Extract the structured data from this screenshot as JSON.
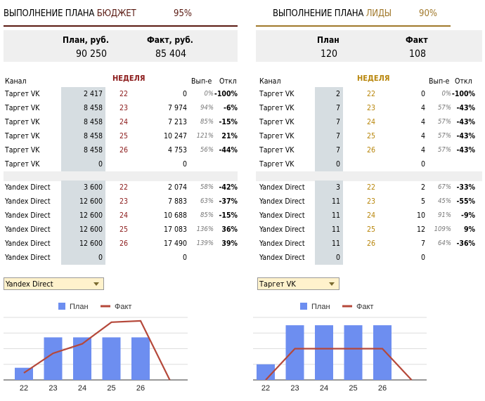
{
  "budget": {
    "title_prefix": "ВЫПОЛНЕНИЕ ПЛАНА ",
    "title_accent": "БЮДЖЕТ",
    "percent": "95%",
    "plan_label": "План, руб.",
    "plan_value": "90 250",
    "fact_label": "Факт, руб.",
    "fact_value": "85 404",
    "col_channel": "Канал",
    "col_week": "НЕДЕЛЯ",
    "col_exec": "Вып-е",
    "col_dev": "Откл",
    "rows_a": [
      {
        "channel": "Таргет VK",
        "plan": "2 417",
        "week": "22",
        "fact": "0",
        "exec": "0%",
        "dev": "-100%"
      },
      {
        "channel": "Таргет VK",
        "plan": "8 458",
        "week": "23",
        "fact": "7 974",
        "exec": "94%",
        "dev": "-6%"
      },
      {
        "channel": "Таргет VK",
        "plan": "8 458",
        "week": "24",
        "fact": "7 213",
        "exec": "85%",
        "dev": "-15%"
      },
      {
        "channel": "Таргет VK",
        "plan": "8 458",
        "week": "25",
        "fact": "10 247",
        "exec": "121%",
        "dev": "21%"
      },
      {
        "channel": "Таргет VK",
        "plan": "8 458",
        "week": "26",
        "fact": "4 753",
        "exec": "56%",
        "dev": "-44%"
      },
      {
        "channel": "Таргет VK",
        "plan": "0",
        "week": "",
        "fact": "0",
        "exec": "",
        "dev": ""
      }
    ],
    "rows_b": [
      {
        "channel": "Yandex Direct",
        "plan": "3 600",
        "week": "22",
        "fact": "2 074",
        "exec": "58%",
        "dev": "-42%"
      },
      {
        "channel": "Yandex Direct",
        "plan": "12 600",
        "week": "23",
        "fact": "7 883",
        "exec": "63%",
        "dev": "-37%"
      },
      {
        "channel": "Yandex Direct",
        "plan": "12 600",
        "week": "24",
        "fact": "10 688",
        "exec": "85%",
        "dev": "-15%"
      },
      {
        "channel": "Yandex Direct",
        "plan": "12 600",
        "week": "25",
        "fact": "17 083",
        "exec": "136%",
        "dev": "36%"
      },
      {
        "channel": "Yandex Direct",
        "plan": "12 600",
        "week": "26",
        "fact": "17 490",
        "exec": "139%",
        "dev": "39%"
      },
      {
        "channel": "Yandex Direct",
        "plan": "0",
        "week": "",
        "fact": "0",
        "exec": "",
        "dev": ""
      }
    ],
    "selector": "Yandex Direct"
  },
  "leads": {
    "title_prefix": "ВЫПОЛНЕНИЕ ПЛАНА ",
    "title_accent": "ЛИДЫ",
    "percent": "90%",
    "plan_label": "План",
    "plan_value": "120",
    "fact_label": "Факт",
    "fact_value": "108",
    "col_channel": "Канал",
    "col_week": "НЕДЕЛЯ",
    "col_exec": "Вып-е",
    "col_dev": "Откл",
    "rows_a": [
      {
        "channel": "Таргет VK",
        "plan": "2",
        "week": "22",
        "fact": "0",
        "exec": "0%",
        "dev": "-100%"
      },
      {
        "channel": "Таргет VK",
        "plan": "7",
        "week": "23",
        "fact": "4",
        "exec": "57%",
        "dev": "-43%"
      },
      {
        "channel": "Таргет VK",
        "plan": "7",
        "week": "24",
        "fact": "4",
        "exec": "57%",
        "dev": "-43%"
      },
      {
        "channel": "Таргет VK",
        "plan": "7",
        "week": "25",
        "fact": "4",
        "exec": "57%",
        "dev": "-43%"
      },
      {
        "channel": "Таргет VK",
        "plan": "7",
        "week": "26",
        "fact": "4",
        "exec": "57%",
        "dev": "-43%"
      },
      {
        "channel": "Таргет VK",
        "plan": "0",
        "week": "",
        "fact": "0",
        "exec": "",
        "dev": ""
      }
    ],
    "rows_b": [
      {
        "channel": "Yandex Direct",
        "plan": "3",
        "week": "22",
        "fact": "2",
        "exec": "67%",
        "dev": "-33%"
      },
      {
        "channel": "Yandex Direct",
        "plan": "11",
        "week": "23",
        "fact": "5",
        "exec": "45%",
        "dev": "-55%"
      },
      {
        "channel": "Yandex Direct",
        "plan": "11",
        "week": "24",
        "fact": "10",
        "exec": "91%",
        "dev": "-9%"
      },
      {
        "channel": "Yandex Direct",
        "plan": "11",
        "week": "25",
        "fact": "12",
        "exec": "109%",
        "dev": "9%"
      },
      {
        "channel": "Yandex Direct",
        "plan": "11",
        "week": "26",
        "fact": "7",
        "exec": "64%",
        "dev": "-36%"
      },
      {
        "channel": "Yandex Direct",
        "plan": "0",
        "week": "",
        "fact": "0",
        "exec": "",
        "dev": ""
      }
    ],
    "selector": "Таргет VK"
  },
  "colors": {
    "budget_accent": "#5a1a12",
    "leads_accent": "#a0782a",
    "budget_week": "#8b1a1a",
    "leads_week": "#b8860b",
    "bar": "#6d8ef0",
    "line": "#b5483a"
  },
  "chart_data": [
    {
      "type": "bar",
      "legend": [
        "План",
        "Факт"
      ],
      "legend_position": "top",
      "categories": [
        "22",
        "23",
        "24",
        "25",
        "26",
        ""
      ],
      "series": [
        {
          "name": "План",
          "type": "bar",
          "values": [
            3600,
            12600,
            12600,
            12600,
            12600,
            0
          ]
        },
        {
          "name": "Факт",
          "type": "line",
          "values": [
            2074,
            7883,
            10688,
            17083,
            17490,
            0
          ]
        }
      ],
      "ylim": [
        0,
        18500
      ],
      "grid": true
    },
    {
      "type": "bar",
      "legend": [
        "План",
        "Факт"
      ],
      "legend_position": "top",
      "categories": [
        "22",
        "23",
        "24",
        "25",
        "26",
        ""
      ],
      "series": [
        {
          "name": "План",
          "type": "bar",
          "values": [
            2,
            7,
            7,
            7,
            7,
            0
          ]
        },
        {
          "name": "Факт",
          "type": "line",
          "values": [
            0,
            4,
            4,
            4,
            4,
            0
          ]
        }
      ],
      "ylim": [
        0,
        8
      ],
      "grid": true
    }
  ]
}
